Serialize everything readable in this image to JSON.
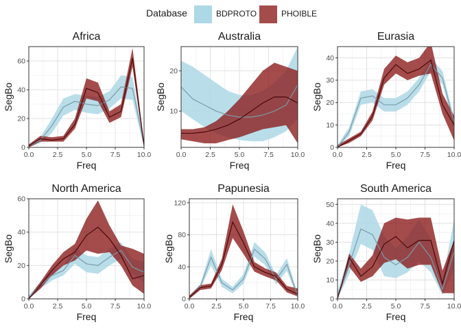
{
  "legend": {
    "title": "Database",
    "placement": "top",
    "entries": [
      {
        "label": "BDPROTO",
        "fill": "#add8e6",
        "line": "#7a9aa6"
      },
      {
        "label": "PHOIBLE",
        "fill": "#8b1a1a",
        "line": "#4a0808"
      }
    ]
  },
  "chart_data": [
    {
      "type": "area",
      "title": "Africa",
      "xlabel": "Freq",
      "ylabel": "SegBo",
      "xlim": [
        0,
        10
      ],
      "ylim": [
        0,
        70
      ],
      "xticks": [
        "0.0",
        "2.5",
        "5.0",
        "7.5",
        "10.0"
      ],
      "yticks": [
        0,
        20,
        40,
        60
      ],
      "x": [
        0,
        1,
        2,
        3,
        4,
        5,
        6,
        7,
        8,
        9,
        10
      ],
      "series": [
        {
          "name": "BDPROTO",
          "mean": [
            1,
            5,
            15,
            28,
            32,
            30,
            29,
            33,
            42,
            41,
            2
          ],
          "lower": [
            0,
            3,
            10,
            22,
            26,
            24,
            23,
            27,
            34,
            33,
            0
          ],
          "upper": [
            2,
            7,
            20,
            34,
            37,
            36,
            35,
            39,
            50,
            49,
            4
          ]
        },
        {
          "name": "PHOIBLE",
          "mean": [
            1,
            6,
            5,
            6,
            16,
            41,
            38,
            21,
            25,
            62,
            1
          ],
          "lower": [
            0,
            4,
            4,
            4,
            13,
            34,
            32,
            17,
            21,
            56,
            0
          ],
          "upper": [
            2,
            8,
            7,
            8,
            20,
            48,
            45,
            25,
            30,
            69,
            3
          ]
        }
      ]
    },
    {
      "type": "area",
      "title": "Australia",
      "xlabel": "Freq",
      "ylabel": "SegBo",
      "xlim": [
        0,
        10
      ],
      "ylim": [
        1,
        26
      ],
      "xticks": [
        "0.0",
        "2.5",
        "5.0",
        "7.5",
        "10.0"
      ],
      "yticks": [
        10,
        20
      ],
      "x": [
        0,
        1,
        2,
        3,
        4,
        5,
        6,
        7,
        8,
        9,
        10
      ],
      "series": [
        {
          "name": "BDPROTO",
          "mean": [
            16,
            13,
            11.5,
            10,
            9,
            8.5,
            8.5,
            9,
            10,
            11.5,
            16.5
          ],
          "lower": [
            10,
            8,
            6,
            4.5,
            3.5,
            2.8,
            2.5,
            2.5,
            3.5,
            5,
            8
          ],
          "upper": [
            22.5,
            21,
            19,
            17,
            15,
            14,
            14,
            15,
            17,
            20,
            26
          ]
        },
        {
          "name": "PHOIBLE",
          "mean": [
            4.5,
            4.5,
            4.8,
            5.5,
            6.5,
            8,
            10,
            12,
            13.5,
            13.5,
            12
          ],
          "lower": [
            3,
            2.5,
            2,
            2,
            2.8,
            3.5,
            4.5,
            5.5,
            6,
            6.5,
            2
          ],
          "upper": [
            5.5,
            5.5,
            6,
            7.5,
            10,
            13,
            16.5,
            20,
            22,
            21,
            20
          ]
        }
      ]
    },
    {
      "type": "area",
      "title": "Eurasia",
      "xlabel": "Freq",
      "ylabel": "SegBo",
      "xlim": [
        0,
        10
      ],
      "ylim": [
        0,
        45
      ],
      "xticks": [
        "0.0",
        "2.5",
        "5.0",
        "7.5",
        "10.0"
      ],
      "yticks": [
        0,
        10,
        20,
        30,
        40
      ],
      "x": [
        0,
        1,
        2,
        3,
        4,
        5,
        6,
        7,
        8,
        9,
        10
      ],
      "series": [
        {
          "name": "BDPROTO",
          "mean": [
            0,
            7,
            22,
            23,
            19,
            19,
            22,
            28,
            37,
            31,
            11
          ],
          "lower": [
            0,
            5,
            19,
            20,
            16,
            16,
            19,
            25,
            34,
            28,
            9
          ],
          "upper": [
            1,
            9,
            25,
            26,
            22,
            22,
            25,
            31,
            40,
            34,
            13
          ]
        },
        {
          "name": "PHOIBLE",
          "mean": [
            0,
            3,
            6,
            14,
            31,
            37,
            33,
            35,
            39,
            19,
            10
          ],
          "lower": [
            0,
            2,
            5,
            12,
            28,
            33,
            30,
            32,
            33,
            15,
            3
          ],
          "upper": [
            1,
            4,
            7,
            16,
            35,
            41,
            38,
            40,
            47,
            24,
            14
          ]
        }
      ]
    },
    {
      "type": "area",
      "title": "North America",
      "xlabel": "Freq",
      "ylabel": "SegBo",
      "xlim": [
        0,
        10
      ],
      "ylim": [
        0,
        60
      ],
      "xticks": [
        "0.0",
        "2.5",
        "5.0",
        "7.5",
        "10.0"
      ],
      "yticks": [
        0,
        20,
        40,
        60
      ],
      "x": [
        0,
        1,
        2,
        3,
        4,
        5,
        6,
        7,
        8,
        9,
        10
      ],
      "series": [
        {
          "name": "BDPROTO",
          "mean": [
            1,
            8,
            14,
            17,
            26,
            21,
            20,
            25,
            29,
            19,
            16
          ],
          "lower": [
            0,
            6,
            11,
            14,
            21,
            16,
            15,
            20,
            24,
            14,
            10
          ],
          "upper": [
            2,
            10,
            17,
            20,
            31,
            26,
            25,
            30,
            34,
            24,
            22
          ]
        },
        {
          "name": "PHOIBLE",
          "mean": [
            0,
            8,
            17,
            24,
            28,
            38,
            43,
            36,
            26,
            12,
            14
          ],
          "lower": [
            0,
            6,
            14,
            20,
            23,
            29,
            27,
            28,
            20,
            8,
            3
          ],
          "upper": [
            1,
            10,
            20,
            28,
            33,
            48,
            59,
            44,
            32,
            30,
            27
          ]
        }
      ]
    },
    {
      "type": "area",
      "title": "Papunesia",
      "xlabel": "Freq",
      "ylabel": "SegBo",
      "xlim": [
        0,
        10
      ],
      "ylim": [
        0,
        125
      ],
      "xticks": [
        "0.0",
        "2.5",
        "5.0",
        "7.5",
        "10.0"
      ],
      "yticks": [
        0,
        40,
        80,
        120
      ],
      "x": [
        0,
        1,
        2,
        3,
        4,
        5,
        6,
        7,
        8,
        9,
        10
      ],
      "series": [
        {
          "name": "BDPROTO",
          "mean": [
            2,
            15,
            52,
            20,
            11,
            25,
            62,
            50,
            24,
            43,
            3
          ],
          "lower": [
            0,
            12,
            42,
            15,
            7,
            19,
            53,
            42,
            18,
            35,
            0
          ],
          "upper": [
            4,
            18,
            62,
            25,
            15,
            31,
            71,
            58,
            30,
            51,
            6
          ]
        },
        {
          "name": "PHOIBLE",
          "mean": [
            2,
            14,
            16,
            43,
            96,
            70,
            40,
            33,
            28,
            12,
            6
          ],
          "lower": [
            0,
            11,
            13,
            36,
            76,
            56,
            34,
            28,
            23,
            8,
            3
          ],
          "upper": [
            4,
            17,
            19,
            50,
            118,
            84,
            46,
            38,
            33,
            16,
            13
          ]
        }
      ]
    },
    {
      "type": "area",
      "title": "South America",
      "xlabel": "Freq",
      "ylabel": "SegBo",
      "xlim": [
        0,
        10
      ],
      "ylim": [
        0,
        53
      ],
      "xticks": [
        "0.0",
        "2.5",
        "5.0",
        "7.5",
        "10.0"
      ],
      "yticks": [
        0,
        10,
        20,
        30,
        40,
        50
      ],
      "x": [
        0,
        1,
        2,
        3,
        4,
        5,
        6,
        7,
        8,
        9,
        10
      ],
      "series": [
        {
          "name": "BDPROTO",
          "mean": [
            2,
            18,
            37,
            34,
            22,
            18,
            22,
            30,
            22,
            5,
            25
          ],
          "lower": [
            0,
            13,
            29,
            26,
            12,
            11,
            14,
            20,
            14,
            2,
            16
          ],
          "upper": [
            4,
            24,
            50,
            47,
            33,
            27,
            33,
            42,
            32,
            10,
            42
          ]
        },
        {
          "name": "PHOIBLE",
          "mean": [
            0,
            22,
            12,
            17,
            29,
            33,
            27,
            31,
            31,
            8,
            31
          ],
          "lower": [
            0,
            17,
            9,
            12,
            19,
            21,
            16,
            18,
            18,
            3,
            3
          ],
          "upper": [
            0,
            24,
            16,
            23,
            40,
            43,
            42,
            43,
            43,
            15,
            31
          ]
        }
      ]
    }
  ]
}
